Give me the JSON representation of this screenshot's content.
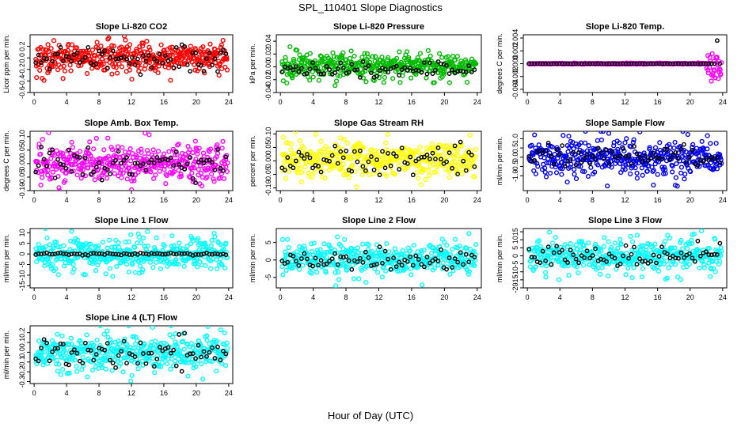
{
  "title": "SPL_110401  Slope Diagnostics",
  "xlabel": "Hour of Day (UTC)",
  "chart_data": [
    {
      "type": "scatter",
      "title": "Slope Li-820 CO2",
      "ylabel": "Licor ppm per min.",
      "ylim": [
        -0.6,
        0.4
      ],
      "yticks": [
        -0.6,
        -0.4,
        -0.2,
        0.0,
        0.2
      ],
      "ytick_labels": [
        "-0.6",
        "-0.4",
        "-0.2",
        "0.0",
        "0.2"
      ],
      "xlim": [
        -0.5,
        24.5
      ],
      "xticks": [
        0,
        4,
        8,
        12,
        16,
        20,
        24
      ],
      "xtick_labels": [
        "0",
        "4",
        "8",
        "12",
        "16",
        "20",
        "24"
      ],
      "color": "#ff0000",
      "n_points": 420,
      "center": 0.0,
      "spread": 0.13,
      "black_center": 0.0,
      "black_spread": 0.11,
      "n_black": 70
    },
    {
      "type": "scatter",
      "title": "Slope Li-820 Pressure",
      "ylabel": "kPa per min.",
      "ylim": [
        -0.04,
        0.05
      ],
      "yticks": [
        -0.04,
        -0.02,
        0.0,
        0.02,
        0.04
      ],
      "ytick_labels": [
        "-0.04",
        "-0.02",
        "0.00",
        "0.02",
        "0.04"
      ],
      "xlim": [
        -0.5,
        24.5
      ],
      "xticks": [
        0,
        4,
        8,
        12,
        16,
        20,
        24
      ],
      "xtick_labels": [
        "0",
        "4",
        "8",
        "12",
        "16",
        "20",
        "24"
      ],
      "color": "#00bb00",
      "n_points": 420,
      "center": 0.002,
      "spread": 0.009,
      "black_center": -0.004,
      "black_spread": 0.006,
      "n_black": 70
    },
    {
      "type": "scatter",
      "title": "Slope Li-820 Temp.",
      "ylabel": "degrees C per min.",
      "ylim": [
        -0.0045,
        0.0045
      ],
      "yticks": [
        -0.004,
        -0.002,
        0.0,
        0.002,
        0.004
      ],
      "ytick_labels": [
        "-0.004",
        "-0.002",
        "0.000",
        "0.002",
        "0.004"
      ],
      "xlim": [
        -0.5,
        24.5
      ],
      "xticks": [
        0,
        4,
        8,
        12,
        16,
        20,
        24
      ],
      "xtick_labels": [
        "0",
        "4",
        "8",
        "12",
        "16",
        "20",
        "24"
      ],
      "color": "#ff00ff",
      "n_points": 420,
      "center": 0.0,
      "spread": 0.0,
      "black_center": 0.0,
      "black_spread": 0.0,
      "n_black": 70,
      "note": "flat near zero with scatter after hour 22"
    },
    {
      "type": "scatter",
      "title": "Slope Amb. Box Temp.",
      "ylabel": "degrees C per min.",
      "ylim": [
        -0.1,
        0.12
      ],
      "yticks": [
        -0.1,
        -0.05,
        0.0,
        0.05,
        0.1
      ],
      "ytick_labels": [
        "-0.10",
        "-0.05",
        "0.00",
        "0.05",
        "0.10"
      ],
      "xlim": [
        -0.5,
        24.5
      ],
      "xticks": [
        0,
        4,
        8,
        12,
        16,
        20,
        24
      ],
      "xtick_labels": [
        "0",
        "4",
        "8",
        "12",
        "16",
        "20",
        "24"
      ],
      "color": "#ff00ff",
      "n_points": 420,
      "center": 0.0,
      "spread": 0.035,
      "black_center": 0.0,
      "black_spread": 0.025,
      "n_black": 70
    },
    {
      "type": "scatter",
      "title": "Slope Gas Stream RH",
      "ylabel": "percent per min.",
      "ylim": [
        -0.11,
        0.11
      ],
      "yticks": [
        -0.1,
        -0.05,
        0.0,
        0.05,
        0.1
      ],
      "ytick_labels": [
        "-0.10",
        "-0.05",
        "0.00",
        "0.05",
        "0.10"
      ],
      "xlim": [
        -0.5,
        24.5
      ],
      "xticks": [
        0,
        4,
        8,
        12,
        16,
        20,
        24
      ],
      "xtick_labels": [
        "0",
        "4",
        "8",
        "12",
        "16",
        "20",
        "24"
      ],
      "color": "#ffff00",
      "n_points": 420,
      "center": 0.005,
      "spread": 0.03,
      "black_center": 0.0,
      "black_spread": 0.025,
      "n_black": 70
    },
    {
      "type": "scatter",
      "title": "Slope Sample Flow",
      "ylabel": "ml/min per min.",
      "ylim": [
        -1.8,
        1.4
      ],
      "yticks": [
        -1.0,
        -0.5,
        0.0,
        0.5,
        1.0
      ],
      "ytick_labels": [
        "-1.0",
        "-0.5",
        "0.0",
        "0.5",
        "1.0"
      ],
      "xlim": [
        -0.5,
        24.5
      ],
      "xticks": [
        0,
        4,
        8,
        12,
        16,
        20,
        24
      ],
      "xtick_labels": [
        "0",
        "4",
        "8",
        "12",
        "16",
        "20",
        "24"
      ],
      "color": "#0000ee",
      "n_points": 420,
      "center": 0.0,
      "spread": 0.45,
      "black_center": 0.0,
      "black_spread": 0.3,
      "n_black": 70
    },
    {
      "type": "scatter",
      "title": "Slope Line 1 Flow",
      "ylabel": "ml/min per min.",
      "ylim": [
        -16,
        12
      ],
      "yticks": [
        -15,
        -10,
        -5,
        0,
        5,
        10
      ],
      "ytick_labels": [
        "-15",
        "-10",
        "-5",
        "0",
        "5",
        "10"
      ],
      "xlim": [
        -0.5,
        24.5
      ],
      "xticks": [
        0,
        4,
        8,
        12,
        16,
        20,
        24
      ],
      "xtick_labels": [
        "0",
        "4",
        "8",
        "12",
        "16",
        "20",
        "24"
      ],
      "color": "#00ffff",
      "n_points": 420,
      "center": 0.0,
      "spread": 3.5,
      "black_center": 0.0,
      "black_spread": 0.3,
      "n_black": 70
    },
    {
      "type": "scatter",
      "title": "Slope Line 2 Flow",
      "ylabel": "ml/min per min.",
      "ylim": [
        -8,
        9
      ],
      "yticks": [
        -5,
        0,
        5
      ],
      "ytick_labels": [
        "-5",
        "0",
        "5"
      ],
      "xlim": [
        -0.5,
        24.5
      ],
      "xticks": [
        0,
        4,
        8,
        12,
        16,
        20,
        24
      ],
      "xtick_labels": [
        "0",
        "4",
        "8",
        "12",
        "16",
        "20",
        "24"
      ],
      "color": "#00ffff",
      "n_points": 420,
      "center": 0.3,
      "spread": 2.2,
      "black_center": 0.0,
      "black_spread": 1.6,
      "n_black": 70
    },
    {
      "type": "scatter",
      "title": "Slope Line 3 Flow",
      "ylabel": "ml/min per min.",
      "ylim": [
        -20,
        17
      ],
      "yticks": [
        -20,
        -15,
        -10,
        -5,
        0,
        5,
        10,
        15
      ],
      "ytick_labels": [
        "-20",
        "-15",
        "-10",
        "-5",
        "0",
        "5",
        "10",
        "15"
      ],
      "xlim": [
        -0.5,
        24.5
      ],
      "xticks": [
        0,
        4,
        8,
        12,
        16,
        20,
        24
      ],
      "xtick_labels": [
        "0",
        "4",
        "8",
        "12",
        "16",
        "20",
        "24"
      ],
      "color": "#00ffff",
      "n_points": 420,
      "center": 0.0,
      "spread": 4.5,
      "black_center": 0.0,
      "black_spread": 3.5,
      "n_black": 70
    },
    {
      "type": "scatter",
      "title": "Slope Line 4 (LT) Flow",
      "ylabel": "ml/min per min.",
      "ylim": [
        -0.32,
        0.27
      ],
      "yticks": [
        -0.3,
        -0.2,
        -0.1,
        0.0,
        0.1,
        0.2
      ],
      "ytick_labels": [
        "-0.3",
        "-0.2",
        "-0.1",
        "0.0",
        "0.1",
        "0.2"
      ],
      "xlim": [
        -0.5,
        24.5
      ],
      "xticks": [
        0,
        4,
        8,
        12,
        16,
        20,
        24
      ],
      "xtick_labels": [
        "0",
        "4",
        "8",
        "12",
        "16",
        "20",
        "24"
      ],
      "color": "#00ffff",
      "n_points": 420,
      "center": 0.0,
      "spread": 0.09,
      "black_center": 0.0,
      "black_spread": 0.08,
      "n_black": 70
    }
  ]
}
